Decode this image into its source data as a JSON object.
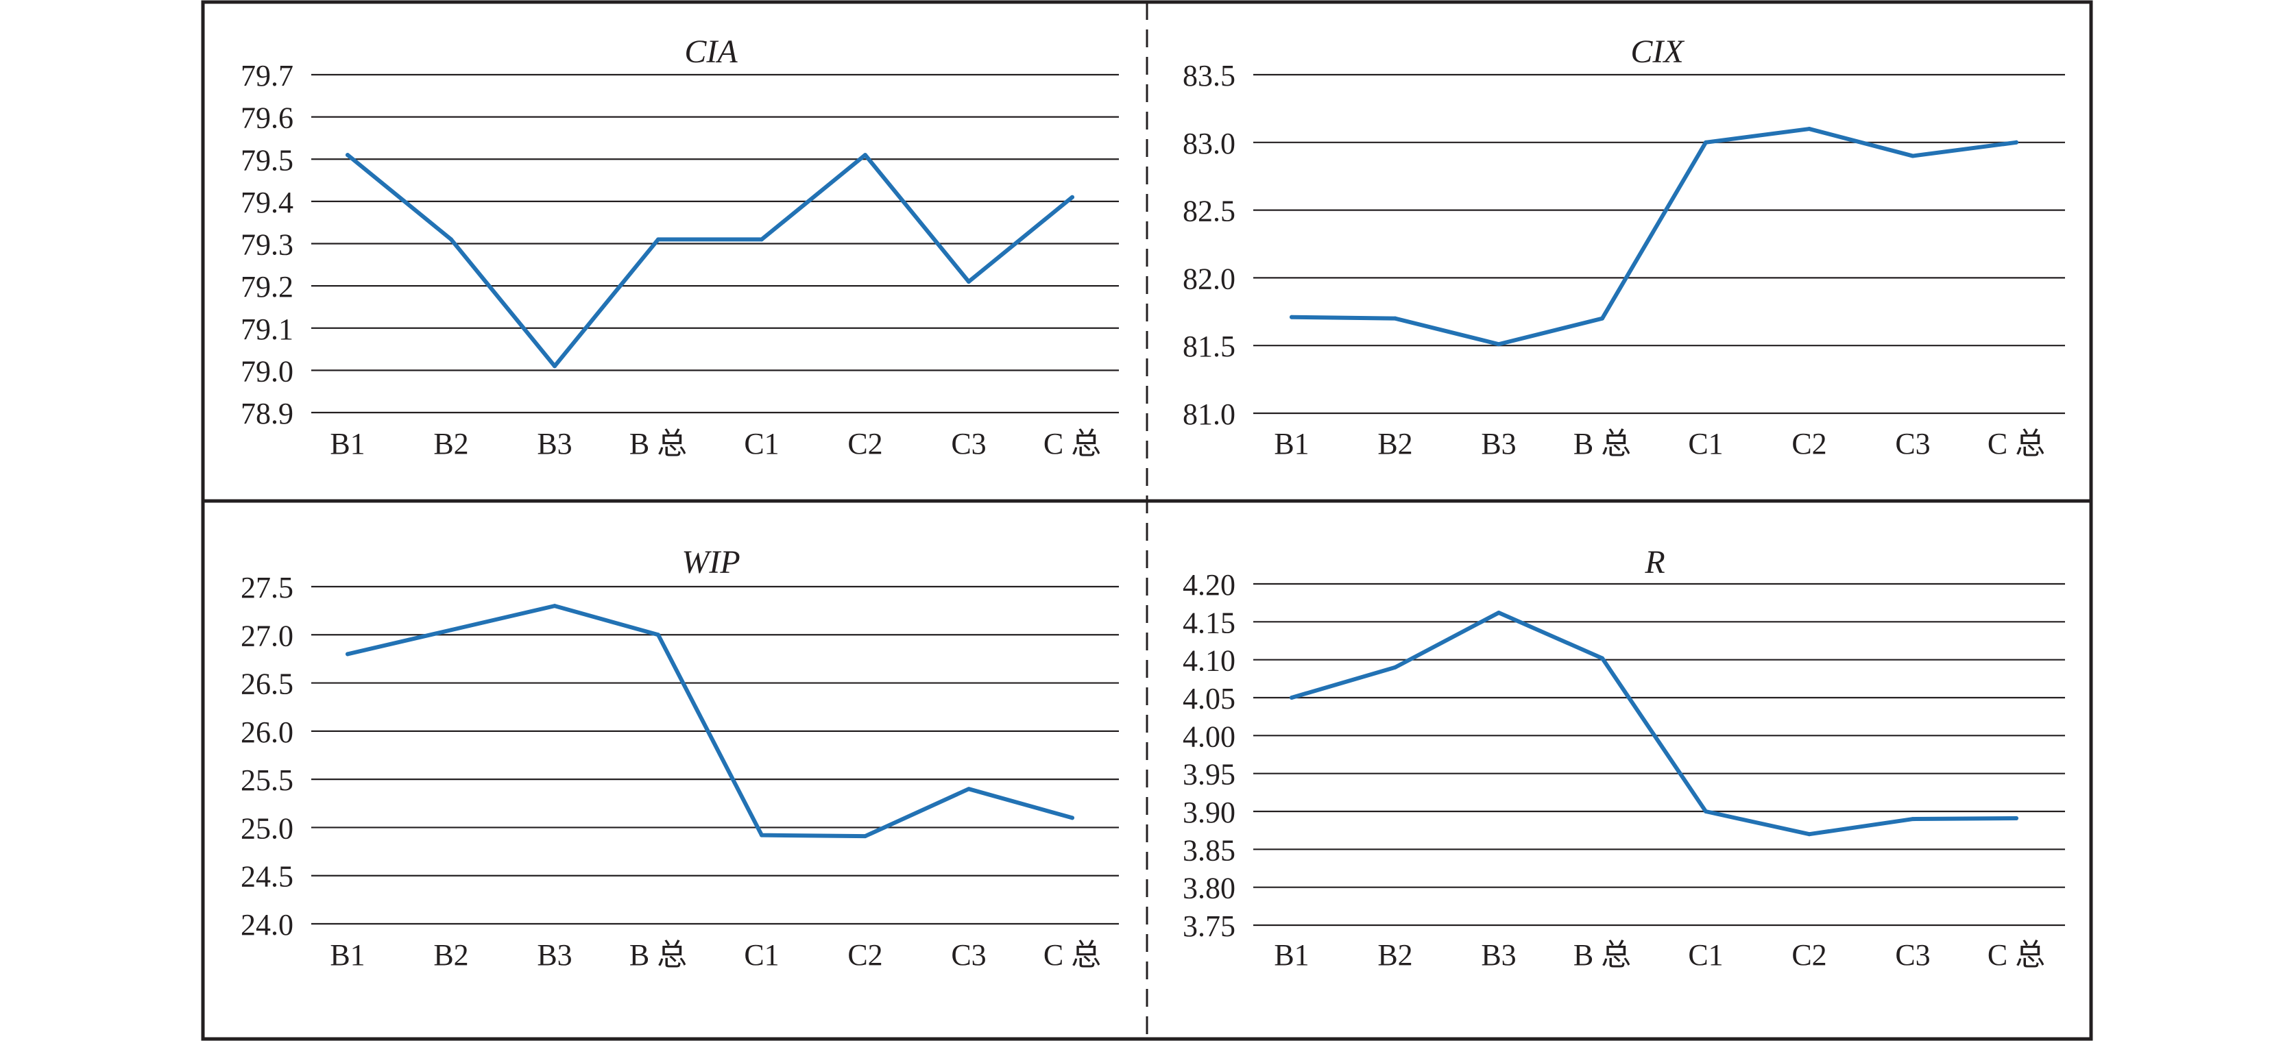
{
  "colors": {
    "series": "#2272b4",
    "grid": "#231f20",
    "text": "#231f20"
  },
  "chart_data": [
    {
      "type": "line",
      "title": "CIA",
      "categories": [
        "B1",
        "B2",
        "B3",
        "B 总",
        "C1",
        "C2",
        "C3",
        "C 总"
      ],
      "values": [
        79.51,
        79.31,
        79.01,
        79.31,
        79.31,
        79.51,
        79.21,
        79.41
      ],
      "ylim": [
        78.9,
        79.7
      ],
      "yticks": [
        "78.9",
        "79.0",
        "79.1",
        "79.2",
        "79.3",
        "79.4",
        "79.5",
        "79.6",
        "79.7"
      ],
      "grid": true
    },
    {
      "type": "line",
      "title": "CIX",
      "categories": [
        "B1",
        "B2",
        "B3",
        "B 总",
        "C1",
        "C2",
        "C3",
        "C 总"
      ],
      "values": [
        81.71,
        81.7,
        81.51,
        81.7,
        83.0,
        83.1,
        82.9,
        83.0
      ],
      "ylim": [
        81.0,
        83.5
      ],
      "yticks": [
        "81.0",
        "81.5",
        "82.0",
        "82.5",
        "83.0",
        "83.5"
      ],
      "grid": true
    },
    {
      "type": "line",
      "title": "WIP",
      "categories": [
        "B1",
        "B2",
        "B3",
        "B 总",
        "C1",
        "C2",
        "C3",
        "C 总"
      ],
      "values": [
        26.8,
        27.05,
        27.3,
        27.0,
        24.92,
        24.91,
        25.4,
        25.1
      ],
      "ylim": [
        24.0,
        27.5
      ],
      "yticks": [
        "24.0",
        "24.5",
        "25.0",
        "25.5",
        "26.0",
        "26.5",
        "27.0",
        "27.5"
      ],
      "grid": true
    },
    {
      "type": "line",
      "title": "R",
      "categories": [
        "B1",
        "B2",
        "B3",
        "B 总",
        "C1",
        "C2",
        "C3",
        "C 总"
      ],
      "values": [
        4.05,
        4.09,
        4.162,
        4.102,
        3.9,
        3.87,
        3.89,
        3.891
      ],
      "ylim": [
        3.75,
        4.2
      ],
      "yticks": [
        "3.75",
        "3.80",
        "3.85",
        "3.90",
        "3.95",
        "4.00",
        "4.05",
        "4.10",
        "4.15",
        "4.20"
      ],
      "grid": true
    }
  ]
}
